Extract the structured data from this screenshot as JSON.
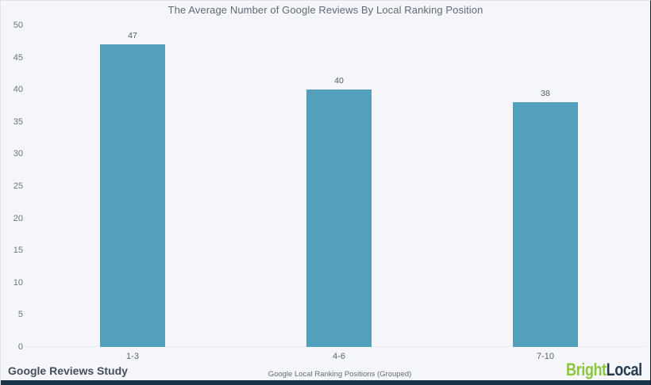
{
  "chart_data": {
    "type": "bar",
    "title": "The Average Number of Google Reviews By Local Ranking Position",
    "categories": [
      "1-3",
      "4-6",
      "7-10"
    ],
    "values": [
      47,
      40,
      38
    ],
    "xlabel": "Google Local Ranking Positions (Grouped)",
    "ylabel": "",
    "ylim": [
      0,
      50
    ],
    "yticks": [
      0,
      5,
      10,
      15,
      20,
      25,
      30,
      35,
      40,
      45,
      50
    ],
    "grid": false,
    "legend": null,
    "bar_color": "#52a0bc"
  },
  "footer": {
    "source_label": "Google Reviews Study",
    "brand": {
      "part1": "Bright",
      "part2": "Local",
      "part1_color": "#8cc63f",
      "part2_color": "#243b52"
    }
  },
  "colors": {
    "background": "#f4f6f9",
    "bar": "#52a0bc",
    "bottom_strip": "#18324a",
    "title_text": "#5f6a76",
    "axis_text": "#6b7580",
    "baseline": "#e7eaee"
  }
}
